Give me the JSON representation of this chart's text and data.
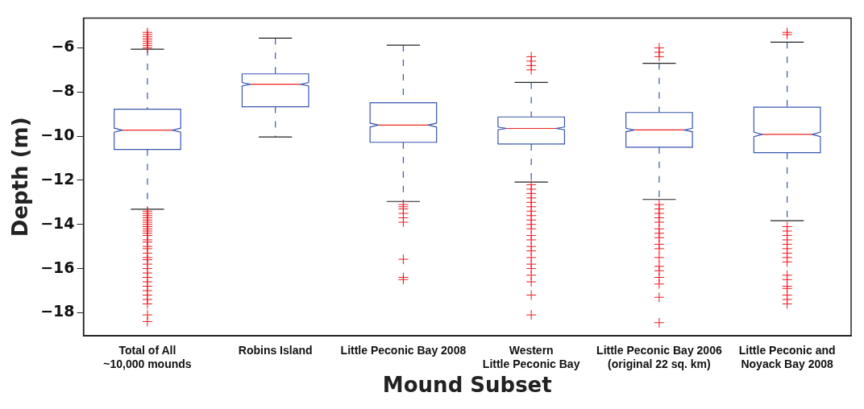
{
  "chart_data": {
    "type": "box",
    "xlabel": "Mound Subset",
    "ylabel": "Depth (m)",
    "categories": [
      "Total of All\n~10,000 mounds",
      "Robins Island",
      "Little Peconic Bay 2008",
      "Western\nLittle Peconic Bay",
      "Little Peconic Bay 2006\n(original 22 sq. km)",
      "Little Peconic and\nNoyack Bay 2008"
    ],
    "color": "#3a56b0",
    "marker": "cross",
    "ylim": [
      -19.05,
      -4.65
    ],
    "yticks": [
      -18,
      -16,
      -14,
      -12,
      -10,
      -8,
      -6
    ],
    "grid": false,
    "boxes": [
      {
        "low": -13.31,
        "q1": -10.6,
        "median": -9.73,
        "q3": -8.78,
        "high": -6.06,
        "outliers": [
          -5.3,
          -5.4,
          -5.5,
          -5.6,
          -5.7,
          -5.8,
          -5.9,
          -6.0,
          -13.4,
          -13.5,
          -13.6,
          -13.7,
          -13.8,
          -13.9,
          -14.0,
          -14.1,
          -14.2,
          -14.3,
          -14.4,
          -14.5,
          -14.7,
          -14.8,
          -15.0,
          -15.1,
          -15.3,
          -15.5,
          -15.6,
          -15.8,
          -16.0,
          -16.2,
          -16.4,
          -16.6,
          -16.8,
          -17.0,
          -17.2,
          -17.4,
          -17.6,
          -18.1,
          -18.4
        ]
      },
      {
        "low": -10.04,
        "q1": -8.67,
        "median": -7.65,
        "q3": -7.18,
        "high": -5.56
      },
      {
        "low": -12.96,
        "q1": -10.28,
        "median": -9.5,
        "q3": -8.49,
        "high": -5.88,
        "outliers": [
          -13.1,
          -13.2,
          -13.3,
          -13.5,
          -13.7,
          -13.9,
          -15.58,
          -16.4,
          -16.5
        ]
      },
      {
        "low": -12.08,
        "q1": -10.36,
        "median": -9.65,
        "q3": -9.13,
        "high": -7.57,
        "outliers": [
          -6.4,
          -6.6,
          -6.8,
          -7.0,
          -12.2,
          -12.4,
          -12.6,
          -12.8,
          -13.0,
          -13.2,
          -13.4,
          -13.6,
          -13.8,
          -14.0,
          -14.2,
          -14.5,
          -14.7,
          -15.0,
          -15.2,
          -15.5,
          -15.8,
          -16.0,
          -16.3,
          -16.6,
          -17.2,
          -18.1
        ]
      },
      {
        "low": -12.87,
        "q1": -10.5,
        "median": -9.72,
        "q3": -8.93,
        "high": -6.7,
        "outliers": [
          -6.0,
          -6.2,
          -6.4,
          -13.1,
          -13.3,
          -13.5,
          -13.7,
          -13.9,
          -14.2,
          -14.4,
          -14.6,
          -14.9,
          -15.1,
          -15.5,
          -15.9,
          -16.1,
          -16.4,
          -16.7,
          -17.3,
          -18.45
        ]
      },
      {
        "low": -13.83,
        "q1": -10.75,
        "median": -9.92,
        "q3": -8.69,
        "high": -5.74,
        "outliers": [
          -5.3,
          -5.4,
          -14.1,
          -14.3,
          -14.5,
          -14.7,
          -14.9,
          -15.1,
          -15.3,
          -15.5,
          -15.7,
          -16.3,
          -16.5,
          -16.8,
          -16.9,
          -17.2,
          -17.4,
          -17.6
        ]
      }
    ]
  }
}
